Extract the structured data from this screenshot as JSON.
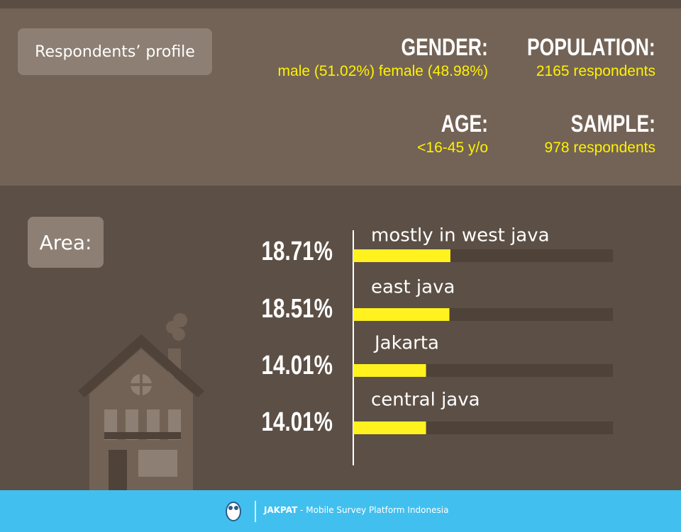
{
  "profile": {
    "title": "Respondents’ profile",
    "items": [
      {
        "label": "GENDER:",
        "value": "male (51.02%) female (48.98%)"
      },
      {
        "label": "POPULATION:",
        "value": "2165 respondents"
      },
      {
        "label": "AGE:",
        "value": "<16-45 y/o"
      },
      {
        "label": "SAMPLE:",
        "value": "978 respondents"
      }
    ]
  },
  "area_title": "Area:",
  "chart_data": {
    "type": "hbar",
    "categories": [
      "mostly in west java",
      "east java",
      "Jakarta",
      "central java"
    ],
    "values": [
      18.71,
      18.51,
      14.01,
      14.01
    ],
    "value_labels": [
      "18.71%",
      "18.51%",
      "14.01%",
      "14.01%"
    ],
    "color": "#fff21f",
    "xlim": [
      0,
      50
    ]
  },
  "footer": {
    "brand": "JAKPAT",
    "tagline": " - Mobile Survey Platform Indonesia"
  }
}
